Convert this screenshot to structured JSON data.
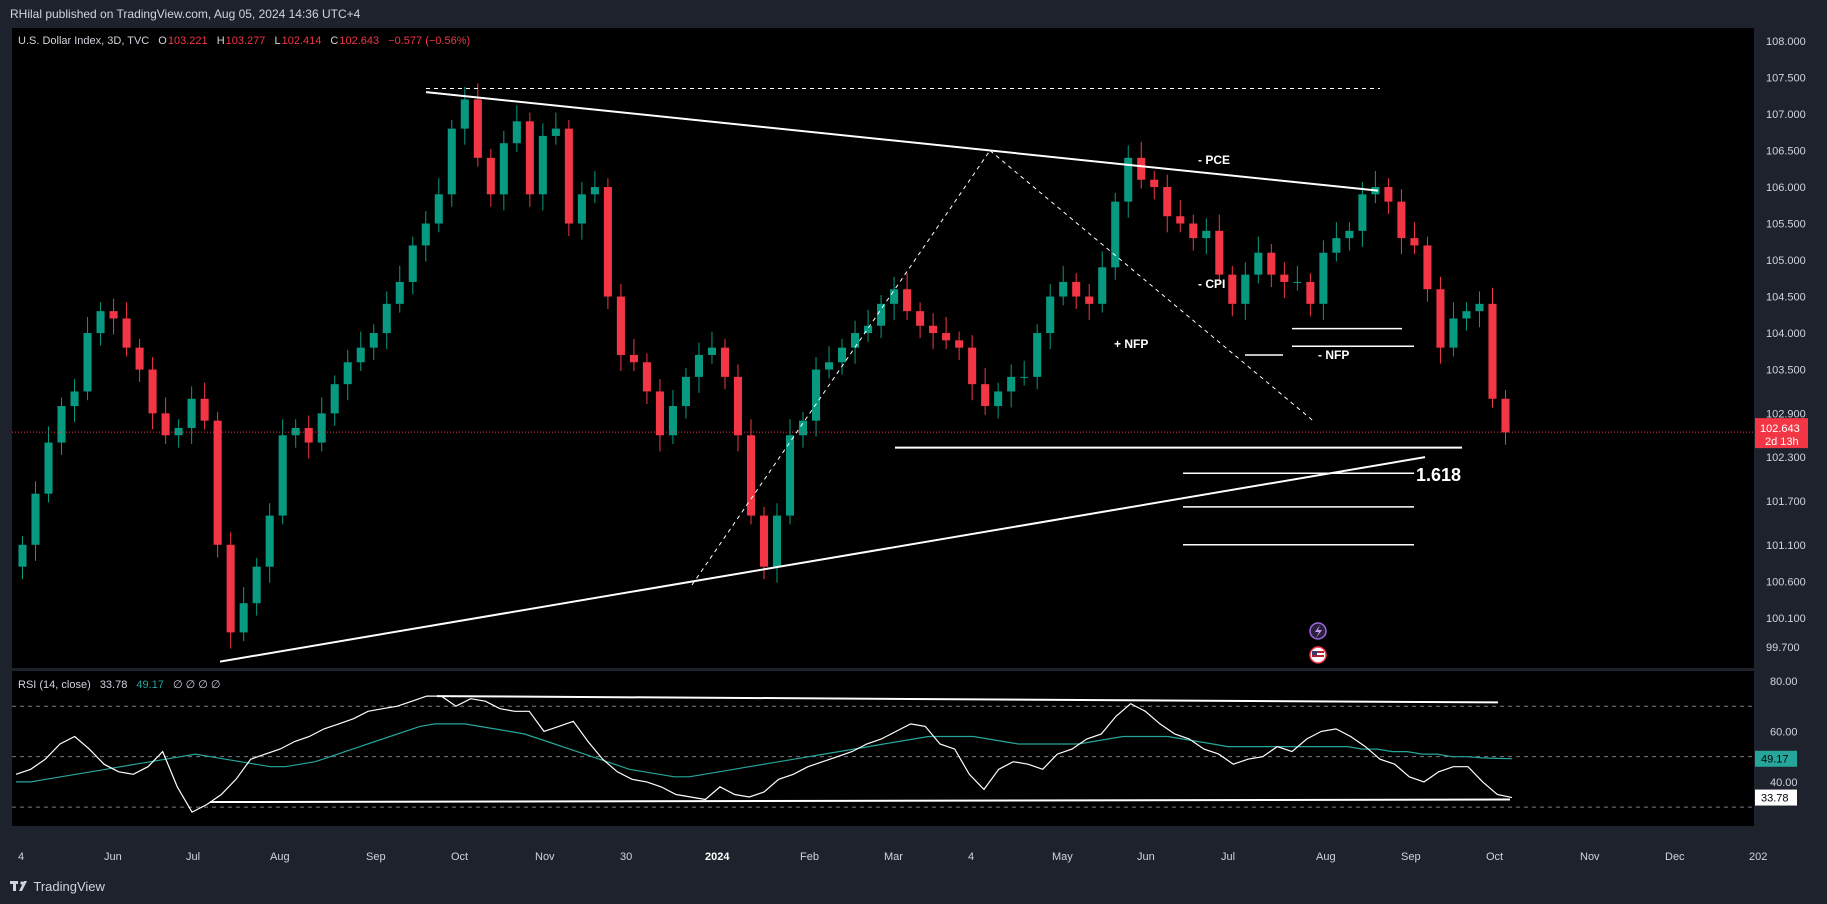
{
  "header": {
    "published": "RHilal published on TradingView.com, Aug 05, 2024 14:36 UTC+4"
  },
  "legend": {
    "symbol": "U.S. Dollar Index, 3D, TVC",
    "o_label": "O",
    "o_value": "103.221",
    "h_label": "H",
    "h_value": "103.277",
    "l_label": "L",
    "l_value": "102.414",
    "c_label": "C",
    "c_value": "102.643",
    "change": "−0.577 (−0.56%)"
  },
  "rsi_legend": {
    "label": "RSI (14, close)",
    "rsi_value": "33.78",
    "ma_value": "49.17",
    "placeholders": "∅ ∅ ∅ ∅"
  },
  "footer": {
    "brand": "TradingView"
  },
  "colors": {
    "up": "#089981",
    "down": "#f23645",
    "rsi_line": "#ffffff",
    "rsi_ma": "#26a69a",
    "background": "#000000",
    "panel": "#1e222d",
    "axis_text": "#d1d4dc"
  },
  "annotations": {
    "pce": "- PCE",
    "cpi": "- CPI",
    "nfp_plus": "+ NFP",
    "nfp_minus": "- NFP",
    "fib": "1.618"
  },
  "chart_data": [
    {
      "type": "candlestick",
      "title": "U.S. Dollar Index, 3D, TVC",
      "y_ticks": [
        "108.000",
        "107.500",
        "107.000",
        "106.500",
        "106.000",
        "105.500",
        "105.000",
        "104.500",
        "104.000",
        "103.500",
        "102.900",
        "102.300",
        "101.700",
        "101.100",
        "100.600",
        "100.100",
        "99.700"
      ],
      "x_ticks": [
        "4",
        "Jun",
        "Jul",
        "Aug",
        "Sep",
        "Oct",
        "Nov",
        "30",
        "2024",
        "Feb",
        "Mar",
        "4",
        "May",
        "Jun",
        "Jul",
        "Aug",
        "Sep",
        "Oct",
        "Nov",
        "Dec",
        "202"
      ],
      "ylim": [
        99.5,
        108.2
      ],
      "last_price": "102.643",
      "countdown": "2d 13h",
      "close": [
        101.1,
        101.8,
        102.5,
        103.0,
        103.2,
        104.0,
        104.3,
        104.2,
        103.8,
        103.5,
        102.9,
        102.6,
        102.7,
        103.1,
        102.8,
        101.1,
        99.9,
        100.3,
        100.8,
        101.5,
        102.6,
        102.7,
        102.5,
        102.9,
        103.3,
        103.6,
        103.8,
        104.0,
        104.4,
        104.7,
        105.2,
        105.5,
        105.9,
        106.8,
        107.2,
        106.4,
        105.9,
        106.6,
        106.9,
        105.9,
        106.7,
        106.8,
        105.5,
        105.9,
        106.0,
        104.5,
        103.7,
        103.6,
        103.2,
        102.6,
        103.0,
        103.4,
        103.7,
        103.8,
        103.4,
        102.6,
        101.5,
        100.8,
        101.5,
        102.6,
        102.8,
        103.5,
        103.6,
        103.8,
        104.0,
        104.1,
        104.4,
        104.6,
        104.3,
        104.1,
        104.0,
        103.9,
        103.8,
        103.3,
        103.0,
        103.2,
        103.4,
        103.4,
        104.0,
        104.5,
        104.7,
        104.5,
        104.4,
        104.9,
        105.8,
        106.4,
        106.1,
        106.0,
        105.6,
        105.5,
        105.3,
        105.4,
        104.8,
        104.4,
        104.8,
        105.1,
        104.8,
        104.7,
        104.7,
        104.4,
        105.1,
        105.3,
        105.4,
        105.9,
        106.0,
        105.8,
        105.3,
        105.2,
        104.6,
        103.8,
        104.2,
        104.3,
        104.4,
        103.1,
        102.64
      ],
      "annotations": [
        "- PCE",
        "- CPI",
        "+ NFP",
        "- NFP",
        "1.618"
      ]
    },
    {
      "type": "line",
      "title": "RSI (14, close)",
      "y_ticks": [
        "80.00",
        "60.00",
        "40.00"
      ],
      "ylim": [
        28,
        82
      ],
      "series": [
        {
          "name": "RSI",
          "last_value": "33.78",
          "values": [
            43,
            45,
            49,
            55,
            58,
            53,
            47,
            44,
            43,
            46,
            52,
            38,
            28,
            31,
            35,
            41,
            49,
            51,
            53,
            56,
            58,
            61,
            63,
            65,
            68,
            69,
            70,
            72,
            74,
            74,
            70,
            73,
            72,
            69,
            68,
            68,
            60,
            62,
            64,
            56,
            49,
            44,
            41,
            40,
            38,
            35,
            34,
            33,
            38,
            35,
            34,
            36,
            41,
            43,
            46,
            48,
            50,
            52,
            55,
            57,
            60,
            63,
            62,
            55,
            53,
            43,
            37,
            45,
            48,
            47,
            45,
            51,
            53,
            57,
            59,
            66,
            71,
            68,
            63,
            59,
            57,
            53,
            51,
            47,
            49,
            50,
            54,
            52,
            57,
            60,
            61,
            58,
            54,
            49,
            47,
            42,
            40,
            44,
            46,
            46,
            40,
            35,
            33.78
          ]
        },
        {
          "name": "MA",
          "last_value": "49.17",
          "values": [
            40,
            40,
            41,
            42,
            43,
            44,
            45,
            46,
            47,
            48,
            49,
            50,
            51,
            50,
            49,
            48,
            47,
            46,
            46,
            47,
            48,
            50,
            52,
            54,
            56,
            58,
            60,
            62,
            63,
            63,
            63,
            62,
            61,
            60,
            59,
            57,
            55,
            53,
            51,
            49,
            47,
            45,
            44,
            43,
            42,
            42,
            43,
            44,
            45,
            46,
            47,
            48,
            49,
            50,
            51,
            52,
            53,
            54,
            55,
            56,
            57,
            58,
            58,
            58,
            58,
            57,
            56,
            55,
            55,
            55,
            55,
            55,
            56,
            57,
            58,
            58,
            58,
            58,
            57,
            56,
            55,
            54,
            54,
            54,
            54,
            54,
            54,
            54,
            54,
            54,
            53,
            53,
            52,
            52,
            51,
            51,
            50,
            50,
            49.5,
            49.3,
            49.17
          ]
        }
      ]
    }
  ]
}
